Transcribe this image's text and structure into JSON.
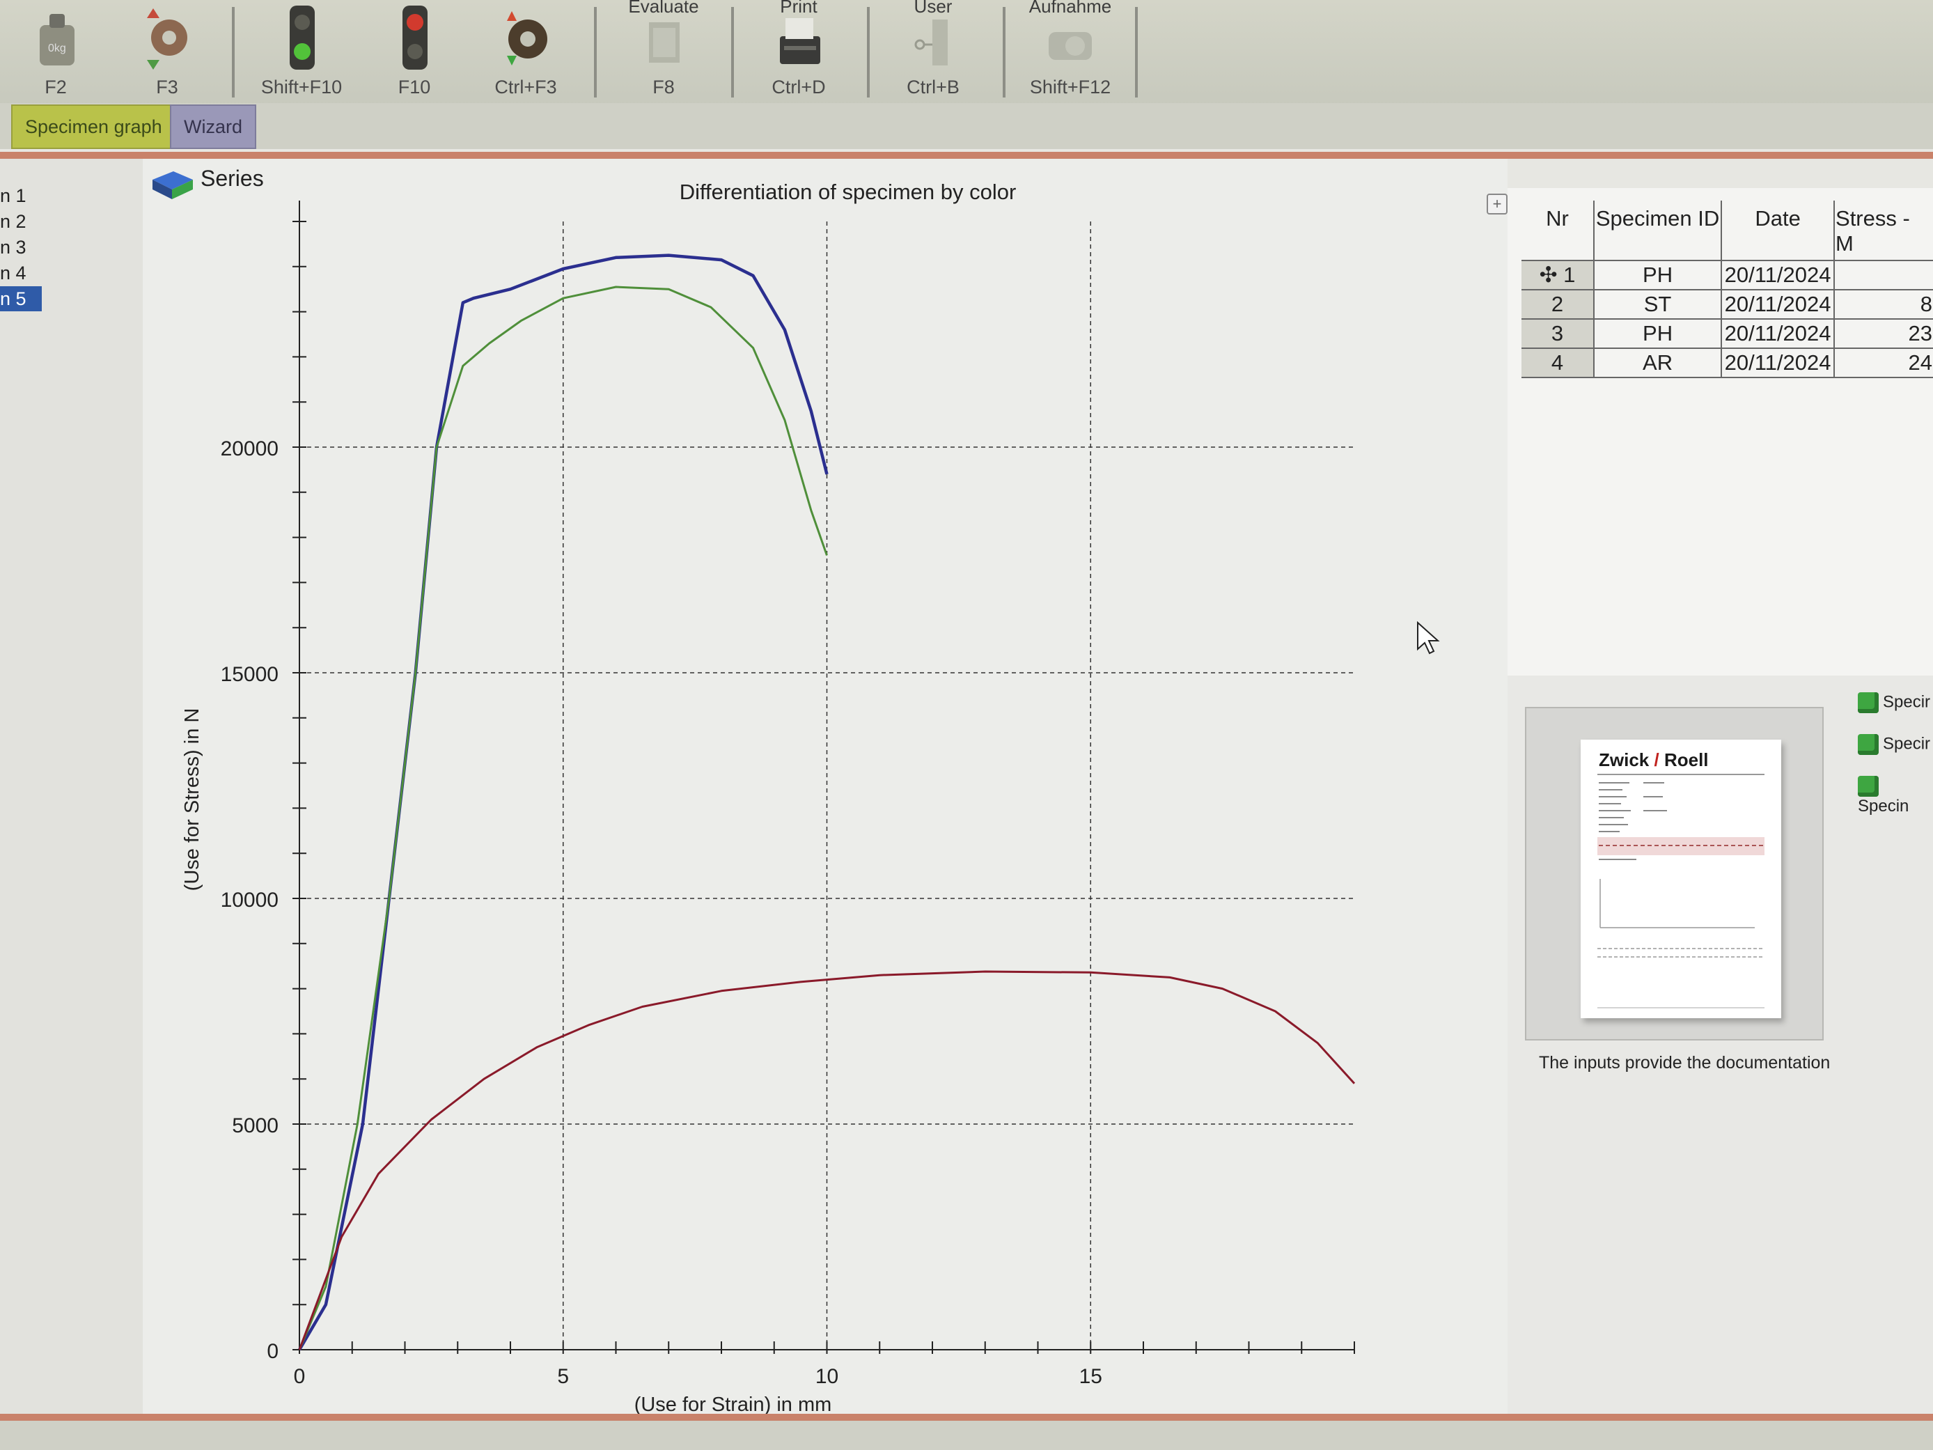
{
  "toolbar": {
    "buttons": [
      {
        "top": "",
        "key": "F2"
      },
      {
        "top": "",
        "key": "F3"
      },
      {
        "top": "",
        "key": "Shift+F10"
      },
      {
        "top": "",
        "key": "F10"
      },
      {
        "top": "",
        "key": "Ctrl+F3"
      },
      {
        "top": "Evaluate",
        "key": "F8"
      },
      {
        "top": "Print",
        "key": "Ctrl+D"
      },
      {
        "top": "User",
        "key": "Ctrl+B"
      },
      {
        "top": "Aufnahme",
        "key": "Shift+F12"
      }
    ]
  },
  "tabs": {
    "specimen_graph": "Specimen graph",
    "wizard": "Wizard"
  },
  "left": {
    "series_title": "Series",
    "series": [
      "n 1",
      "n 2",
      "n 3",
      "n 4",
      "n 5"
    ],
    "selected": "n 5"
  },
  "chart_data": {
    "type": "line",
    "title": "Differentiation of specimen by color",
    "xlabel": "(Use for Strain) in mm",
    "ylabel": "(Use for Stress) in N",
    "xlim": [
      0,
      20
    ],
    "ylim": [
      0,
      25000
    ],
    "xticks": [
      0,
      5,
      10,
      15
    ],
    "yticks": [
      0,
      5000,
      10000,
      15000,
      20000
    ],
    "grid": true,
    "series": [
      {
        "color": "#2b2f8f",
        "points": [
          [
            0,
            0
          ],
          [
            0.5,
            1000
          ],
          [
            1.2,
            5000
          ],
          [
            1.7,
            10000
          ],
          [
            2.2,
            15000
          ],
          [
            2.6,
            20000
          ],
          [
            3.1,
            23200
          ],
          [
            3.3,
            23300
          ],
          [
            4,
            23500
          ],
          [
            5,
            23950
          ],
          [
            6,
            24200
          ],
          [
            7,
            24250
          ],
          [
            8,
            24150
          ],
          [
            8.6,
            23800
          ],
          [
            9.2,
            22600
          ],
          [
            9.7,
            20800
          ],
          [
            10,
            19400
          ]
        ]
      },
      {
        "color": "#4f8f3a",
        "points": [
          [
            0,
            0
          ],
          [
            0.5,
            1400
          ],
          [
            1.1,
            5000
          ],
          [
            1.7,
            10000
          ],
          [
            2.2,
            15000
          ],
          [
            2.6,
            20000
          ],
          [
            3.1,
            21800
          ],
          [
            3.6,
            22300
          ],
          [
            4.2,
            22800
          ],
          [
            5,
            23300
          ],
          [
            6,
            23550
          ],
          [
            7,
            23500
          ],
          [
            7.8,
            23100
          ],
          [
            8.6,
            22200
          ],
          [
            9.2,
            20600
          ],
          [
            9.7,
            18600
          ],
          [
            10,
            17600
          ]
        ]
      },
      {
        "color": "#8a1a2a",
        "points": [
          [
            0,
            0
          ],
          [
            0.8,
            2500
          ],
          [
            1.5,
            3900
          ],
          [
            2.5,
            5100
          ],
          [
            3.5,
            6000
          ],
          [
            4.5,
            6700
          ],
          [
            5.5,
            7200
          ],
          [
            6.5,
            7600
          ],
          [
            8,
            7950
          ],
          [
            9.5,
            8150
          ],
          [
            11,
            8300
          ],
          [
            13,
            8380
          ],
          [
            15,
            8360
          ],
          [
            16.5,
            8250
          ],
          [
            17.5,
            8000
          ],
          [
            18.5,
            7500
          ],
          [
            19.3,
            6800
          ],
          [
            20,
            5900
          ]
        ]
      }
    ]
  },
  "table": {
    "headers": [
      "Nr",
      "Specimen ID",
      "Date",
      "Stress - M"
    ],
    "rows": [
      {
        "nr": "1",
        "id": "PH",
        "date": "20/11/2024",
        "stress": ""
      },
      {
        "nr": "2",
        "id": "ST",
        "date": "20/11/2024",
        "stress": "8"
      },
      {
        "nr": "3",
        "id": "PH",
        "date": "20/11/2024",
        "stress": "23"
      },
      {
        "nr": "4",
        "id": "AR",
        "date": "20/11/2024",
        "stress": "24"
      }
    ]
  },
  "doc": {
    "logo_left": "Zwick",
    "logo_right": "Roell",
    "caption": "The inputs provide the documentation",
    "items": [
      "Specir",
      "Specir",
      "Specin"
    ]
  }
}
